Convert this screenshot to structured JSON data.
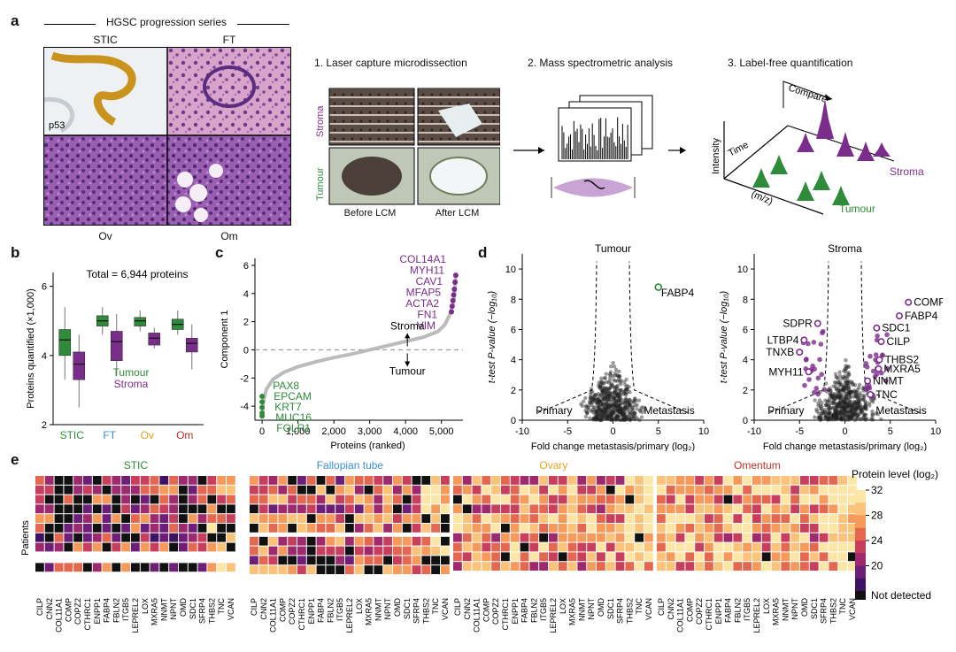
{
  "panel_a": {
    "label": "a",
    "series_title": "HGSC progression series",
    "tiles": [
      "STIC",
      "FT",
      "Ov",
      "Om"
    ],
    "stain": "p53",
    "steps": [
      "1. Laser capture microdissection",
      "2. Mass spectrometric analysis",
      "3. Label-free quantification"
    ],
    "lcm_rows": [
      "Stroma",
      "Tumour"
    ],
    "lcm_cols": [
      "Before LCM",
      "After LCM"
    ],
    "quant": {
      "intensity": "Intensity",
      "time": "Time",
      "mz": "(m/z)",
      "compare": "Compare",
      "stroma": "Stroma",
      "tumour": "Tumour"
    }
  },
  "panel_b": {
    "label": "b",
    "total": "Total = 6,944 proteins",
    "ylabel": "Proteins quantified (×1,000)",
    "legend_tumour": "Tumour",
    "legend_stroma": "Stroma",
    "colors": {
      "tumour": "#2e8b3a",
      "stroma": "#7b2d8b"
    },
    "chart_data": {
      "type": "box",
      "categories": [
        "STIC",
        "FT",
        "Ov",
        "Om"
      ],
      "category_colors": [
        "#2e8b3a",
        "#3a8fd0",
        "#e6a020",
        "#b0302a"
      ],
      "ylim": [
        2,
        6.4
      ],
      "yticks": [
        2,
        4,
        6
      ],
      "series": [
        {
          "name": "Tumour",
          "boxes": [
            [
              3.3,
              4.0,
              4.45,
              4.75,
              5.4
            ],
            [
              4.6,
              4.85,
              5.0,
              5.15,
              5.4
            ],
            [
              4.7,
              4.85,
              5.0,
              5.1,
              5.3
            ],
            [
              4.6,
              4.75,
              4.9,
              5.05,
              5.3
            ]
          ]
        },
        {
          "name": "Stroma",
          "boxes": [
            [
              2.5,
              3.3,
              3.75,
              4.1,
              4.6
            ],
            [
              3.4,
              3.85,
              4.4,
              4.7,
              5.2
            ],
            [
              4.2,
              4.3,
              4.5,
              4.65,
              4.8
            ],
            [
              3.6,
              4.1,
              4.35,
              4.5,
              4.9
            ]
          ]
        }
      ]
    }
  },
  "panel_c": {
    "label": "c",
    "ylabel": "Component 1",
    "xlabel": "Proteins (ranked)",
    "stroma_arrow": "Stroma",
    "tumour_arrow": "Tumour",
    "chart_data": {
      "type": "line",
      "xlim": [
        -200,
        5600
      ],
      "ylim": [
        -5,
        6.5
      ],
      "xticks": [
        0,
        1000,
        2000,
        3000,
        4000,
        5000
      ],
      "xtick_labels": [
        "0",
        "1,000",
        "2,000",
        "3,000",
        "4,000",
        "5,000"
      ],
      "yticks": [
        -4,
        -2,
        0,
        2,
        4,
        6
      ],
      "curve_x": [
        0,
        40,
        120,
        300,
        600,
        1000,
        1500,
        2000,
        2500,
        3000,
        3500,
        4000,
        4500,
        4900,
        5100,
        5250,
        5350,
        5400
      ],
      "curve_y": [
        -4.6,
        -3.6,
        -2.8,
        -2.1,
        -1.6,
        -1.2,
        -0.85,
        -0.55,
        -0.3,
        0,
        0.3,
        0.6,
        0.9,
        1.3,
        1.8,
        2.6,
        3.6,
        5.3
      ],
      "top_genes": [
        "COL14A1",
        "MYH11",
        "CAV1",
        "MFAP5",
        "ACTA2",
        "FN1",
        "VIM"
      ],
      "bottom_genes": [
        "PAX8",
        "EPCAM",
        "KRT7",
        "MUC16",
        "FOLR1"
      ],
      "top_points": [
        [
          5400,
          5.3
        ],
        [
          5380,
          4.8
        ],
        [
          5360,
          4.3
        ],
        [
          5340,
          3.9
        ],
        [
          5320,
          3.5
        ],
        [
          5300,
          3.1
        ],
        [
          5280,
          2.7
        ]
      ],
      "bottom_points": [
        [
          0,
          -3.3
        ],
        [
          0,
          -3.7
        ],
        [
          0,
          -4.1
        ],
        [
          0,
          -4.5
        ],
        [
          0,
          -4.7
        ]
      ]
    }
  },
  "panel_d": {
    "label": "d",
    "left": {
      "title": "Tumour",
      "gene": "FABP4",
      "primary": "Primary",
      "metastasis": "Metastasis",
      "chart_data": {
        "type": "scatter",
        "xlim": [
          -10,
          10
        ],
        "ylim": [
          0,
          11
        ],
        "xticks": [
          -10,
          -5,
          0,
          5,
          10
        ],
        "yticks": [
          0,
          2,
          4,
          6,
          8,
          10
        ],
        "highlight": [
          [
            5,
            8.8
          ]
        ]
      }
    },
    "right": {
      "title": "Stroma",
      "primary": "Primary",
      "metastasis": "Metastasis",
      "chart_data": {
        "type": "scatter",
        "xlim": [
          -10,
          10
        ],
        "ylim": [
          0,
          11
        ],
        "xticks": [
          -10,
          -5,
          0,
          5,
          10
        ],
        "yticks": [
          0,
          2,
          4,
          6,
          8,
          10
        ],
        "labels": [
          {
            "gene": "COMP",
            "x": 7.0,
            "y": 7.8
          },
          {
            "gene": "FABP4",
            "x": 6.0,
            "y": 6.9
          },
          {
            "gene": "SDC1",
            "x": 3.5,
            "y": 6.1
          },
          {
            "gene": "CILP",
            "x": 4.0,
            "y": 5.2
          },
          {
            "gene": "THBS2",
            "x": 3.8,
            "y": 4.0
          },
          {
            "gene": "MXRA5",
            "x": 3.7,
            "y": 3.4
          },
          {
            "gene": "NNMT",
            "x": 2.5,
            "y": 2.6
          },
          {
            "gene": "TNC",
            "x": 2.8,
            "y": 1.7
          },
          {
            "gene": "SDPR",
            "x": -3.0,
            "y": 6.4
          },
          {
            "gene": "LTBP4",
            "x": -4.5,
            "y": 5.3
          },
          {
            "gene": "TNXB",
            "x": -5.0,
            "y": 4.5
          },
          {
            "gene": "MYH11",
            "x": -4.0,
            "y": 3.2
          }
        ]
      }
    },
    "xlabel": "Fold change metastasis/primary (log₂)",
    "ylabel": "t-test P-value (−log₁₀)"
  },
  "panel_e": {
    "label": "e",
    "ylabel": "Patients",
    "colorbar_title": "Protein level (log₂)",
    "colorbar_ticks": [
      "32",
      "28",
      "24",
      "20"
    ],
    "not_detected": "Not detected",
    "heatmaps": [
      {
        "title": "STIC",
        "color": "#2e8b3a",
        "genes": [
          "CILP",
          "CNN2",
          "COL11A1",
          "COMP",
          "COPZ2",
          "CTHRC1",
          "ENPP1",
          "FABP4",
          "FBLN2",
          "ITGB5",
          "LEPREL2",
          "LOX",
          "MXRA5",
          "NNMT",
          "NPNT",
          "OMD",
          "SDC1",
          "SFRP4",
          "THBS2",
          "TNC",
          "VCAN"
        ]
      },
      {
        "title": "Fallopian tube",
        "color": "#3a8fd0",
        "genes": [
          "CILP",
          "CNN2",
          "COL11A1",
          "COMP",
          "COPZ2",
          "CTHRC1",
          "ENPP1",
          "FABP4",
          "FBLN2",
          "ITGB5",
          "LEPREL2",
          "LOX",
          "MXRA5",
          "NNMT",
          "NPNT",
          "OMD",
          "SDC1",
          "SFRP4",
          "THBS2",
          "TNC",
          "VCAN"
        ]
      },
      {
        "title": "Ovary",
        "color": "#e6a020",
        "genes": [
          "CILP",
          "CNN2",
          "COL11A1",
          "COMP",
          "COPZ2",
          "CTHRC1",
          "ENPP1",
          "FABP4",
          "FBLN2",
          "ITGB5",
          "LEPREL2",
          "LOX",
          "MXRA5",
          "NNMT",
          "NPNT",
          "OMD",
          "SDC1",
          "SFRP4",
          "THBS2",
          "TNC",
          "VCAN"
        ]
      },
      {
        "title": "Omentum",
        "color": "#c0302a",
        "genes": [
          "CILP",
          "CNN2",
          "COL11A1",
          "COMP",
          "COPZ2",
          "CTHRC1",
          "ENPP1",
          "FABP4",
          "FBLN2",
          "ITGB5",
          "LEPREL2",
          "LOX",
          "MXRA5",
          "NNMT",
          "NPNT",
          "OMD",
          "SDC1",
          "SFRP4",
          "THBS2",
          "TNC",
          "VCAN"
        ]
      }
    ]
  }
}
